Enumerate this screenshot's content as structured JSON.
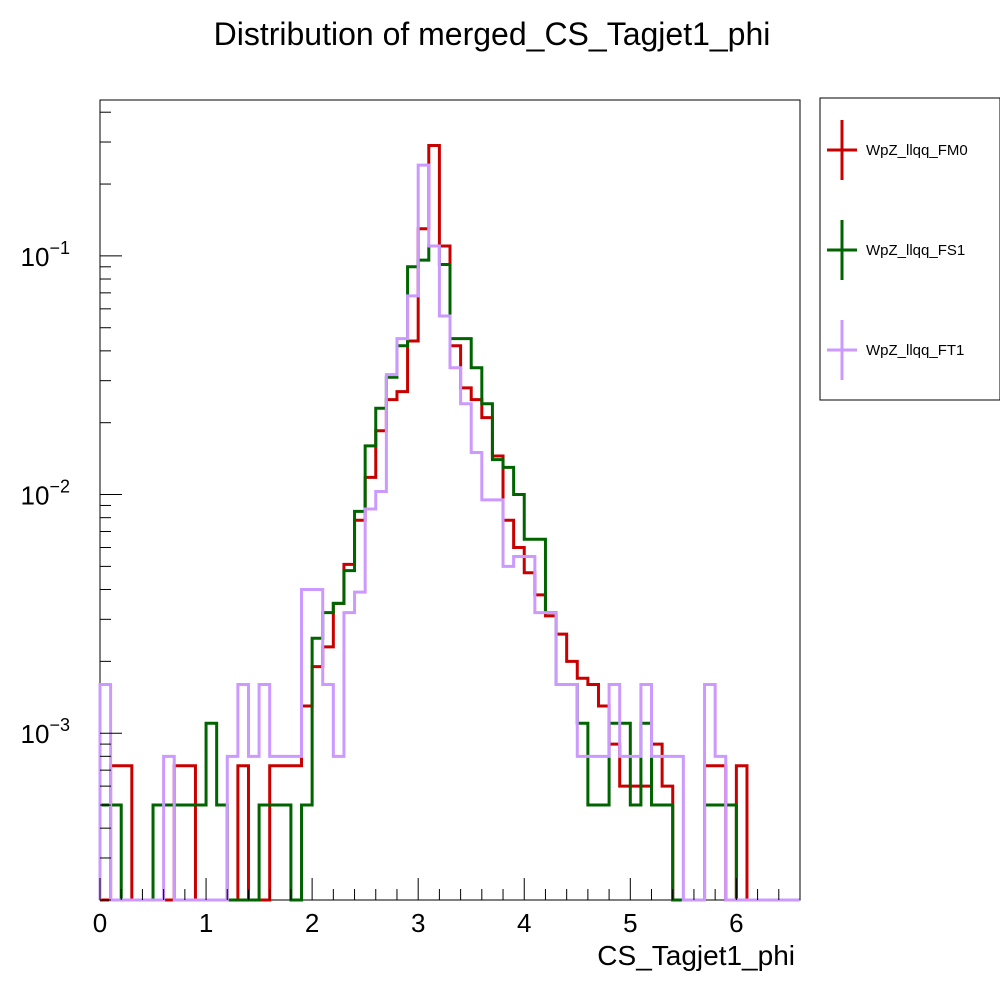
{
  "chart_data": {
    "type": "histogram",
    "title": "Distribution of merged_CS_Tagjet1_phi",
    "xlabel": "CS_Tagjet1_phi",
    "ylabel": "",
    "xlim": [
      0,
      6.6
    ],
    "ylim": [
      0.0002,
      0.45
    ],
    "yscale": "log",
    "bin_width": 0.1,
    "x_ticks": [
      {
        "value": 0,
        "label": "0"
      },
      {
        "value": 1,
        "label": "1"
      },
      {
        "value": 2,
        "label": "2"
      },
      {
        "value": 3,
        "label": "3"
      },
      {
        "value": 4,
        "label": "4"
      },
      {
        "value": 5,
        "label": "5"
      },
      {
        "value": 6,
        "label": "6"
      }
    ],
    "y_ticks": [
      {
        "value": 0.001,
        "base": "10",
        "exp": "−3"
      },
      {
        "value": 0.01,
        "base": "10",
        "exp": "−2"
      },
      {
        "value": 0.1,
        "base": "10",
        "exp": "−1"
      }
    ],
    "grid": false,
    "legend_position": "right",
    "series": [
      {
        "name": "WpZ_llqq_FM0",
        "color": "#c80000",
        "x": [
          0.0,
          0.1,
          0.2,
          0.3,
          0.4,
          0.5,
          0.6,
          0.7,
          0.8,
          0.9,
          1.0,
          1.1,
          1.2,
          1.3,
          1.4,
          1.5,
          1.6,
          1.7,
          1.8,
          1.9,
          2.0,
          2.1,
          2.2,
          2.3,
          2.4,
          2.5,
          2.6,
          2.7,
          2.8,
          2.9,
          3.0,
          3.1,
          3.2,
          3.3,
          3.4,
          3.5,
          3.6,
          3.7,
          3.8,
          3.9,
          4.0,
          4.1,
          4.2,
          4.3,
          4.4,
          4.5,
          4.6,
          4.7,
          4.8,
          4.9,
          5.0,
          5.1,
          5.2,
          5.3,
          5.4,
          5.5,
          5.6,
          5.7,
          5.8,
          5.9,
          6.0,
          6.1,
          6.2,
          6.3,
          6.4,
          6.5
        ],
        "values": [
          0.0002,
          0.00073,
          0.00073,
          0.0002,
          0.0002,
          0.0002,
          0.0002,
          0.00073,
          0.00073,
          0.0002,
          0.0002,
          0.0002,
          0.0002,
          0.00073,
          0.0002,
          0.0002,
          0.00073,
          0.00073,
          0.00073,
          0.0013,
          0.0019,
          0.0023,
          0.0035,
          0.0051,
          0.0078,
          0.0118,
          0.0185,
          0.025,
          0.027,
          0.044,
          0.13,
          0.29,
          0.11,
          0.042,
          0.028,
          0.025,
          0.021,
          0.0145,
          0.0078,
          0.006,
          0.0047,
          0.0038,
          0.0031,
          0.0026,
          0.002,
          0.0017,
          0.0016,
          0.0013,
          0.0009,
          0.0006,
          0.0006,
          0.0006,
          0.0009,
          0.0006,
          0.0002,
          0.0002,
          0.0002,
          0.00073,
          0.00073,
          0.0002,
          0.00073,
          0.0002,
          0.0002,
          0.0002,
          0.0002,
          0.0002
        ]
      },
      {
        "name": "WpZ_llqq_FS1",
        "color": "#006400",
        "x": [
          0.0,
          0.1,
          0.2,
          0.3,
          0.4,
          0.5,
          0.6,
          0.7,
          0.8,
          0.9,
          1.0,
          1.1,
          1.2,
          1.3,
          1.4,
          1.5,
          1.6,
          1.7,
          1.8,
          1.9,
          2.0,
          2.1,
          2.2,
          2.3,
          2.4,
          2.5,
          2.6,
          2.7,
          2.8,
          2.9,
          3.0,
          3.1,
          3.2,
          3.3,
          3.4,
          3.5,
          3.6,
          3.7,
          3.8,
          3.9,
          4.0,
          4.1,
          4.2,
          4.3,
          4.4,
          4.5,
          4.6,
          4.7,
          4.8,
          4.9,
          5.0,
          5.1,
          5.2,
          5.3,
          5.4,
          5.5,
          5.6,
          5.7,
          5.8,
          5.9,
          6.0,
          6.1,
          6.2,
          6.3,
          6.4,
          6.5
        ],
        "values": [
          0.0005,
          0.0005,
          0.0002,
          0.0002,
          0.0002,
          0.0005,
          0.0005,
          0.0005,
          0.0005,
          0.0005,
          0.0011,
          0.0005,
          0.0002,
          0.0002,
          0.0002,
          0.0005,
          0.0005,
          0.0005,
          0.0002,
          0.0005,
          0.0025,
          0.0032,
          0.0035,
          0.0048,
          0.0085,
          0.016,
          0.023,
          0.031,
          0.042,
          0.09,
          0.096,
          0.11,
          0.092,
          0.045,
          0.045,
          0.034,
          0.024,
          0.014,
          0.013,
          0.01,
          0.0065,
          0.0065,
          0.0032,
          0.0016,
          0.0016,
          0.0011,
          0.0005,
          0.0005,
          0.0011,
          0.0011,
          0.0005,
          0.0011,
          0.0005,
          0.0005,
          0.0002,
          0.0002,
          0.0002,
          0.0005,
          0.0005,
          0.0005,
          0.0002,
          0.0002,
          0.0002,
          0.0002,
          0.0002,
          0.0002
        ]
      },
      {
        "name": "WpZ_llqq_FT1",
        "color": "#cc99ff",
        "x": [
          0.0,
          0.1,
          0.2,
          0.3,
          0.4,
          0.5,
          0.6,
          0.7,
          0.8,
          0.9,
          1.0,
          1.1,
          1.2,
          1.3,
          1.4,
          1.5,
          1.6,
          1.7,
          1.8,
          1.9,
          2.0,
          2.1,
          2.2,
          2.3,
          2.4,
          2.5,
          2.6,
          2.7,
          2.8,
          2.9,
          3.0,
          3.1,
          3.2,
          3.3,
          3.4,
          3.5,
          3.6,
          3.7,
          3.8,
          3.9,
          4.0,
          4.1,
          4.2,
          4.3,
          4.4,
          4.5,
          4.6,
          4.7,
          4.8,
          4.9,
          5.0,
          5.1,
          5.2,
          5.3,
          5.4,
          5.5,
          5.6,
          5.7,
          5.8,
          5.9,
          6.0,
          6.1,
          6.2,
          6.3,
          6.4,
          6.5
        ],
        "values": [
          0.0016,
          0.0002,
          0.0002,
          0.0002,
          0.0002,
          0.0002,
          0.0008,
          0.0002,
          0.0002,
          0.0002,
          0.0002,
          0.0002,
          0.0008,
          0.0016,
          0.0008,
          0.0016,
          0.0008,
          0.0008,
          0.0008,
          0.004,
          0.004,
          0.0016,
          0.0008,
          0.0032,
          0.0039,
          0.0087,
          0.0103,
          0.0318,
          0.045,
          0.068,
          0.24,
          0.11,
          0.056,
          0.034,
          0.024,
          0.015,
          0.0095,
          0.0095,
          0.005,
          0.0055,
          0.0055,
          0.0032,
          0.0032,
          0.0016,
          0.0016,
          0.0008,
          0.0008,
          0.0008,
          0.0016,
          0.0008,
          0.0008,
          0.0016,
          0.0008,
          0.0008,
          0.0008,
          0.0002,
          0.0002,
          0.0016,
          0.0008,
          0.0002,
          0.0002,
          0.0002,
          0.0002,
          0.0002,
          0.0002,
          0.0002
        ]
      }
    ]
  }
}
